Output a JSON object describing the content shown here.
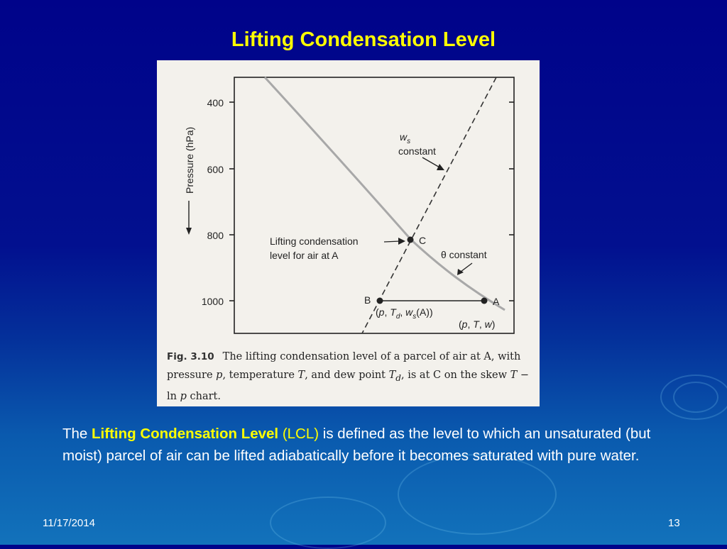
{
  "slide": {
    "title": "Lifting Condensation Level",
    "date": "11/17/2014",
    "page_number": "13"
  },
  "figure": {
    "y_axis_label": "Pressure (hPa)",
    "y_ticks": [
      "400",
      "600",
      "800",
      "1000"
    ],
    "ws_label_main": "w",
    "ws_label_sub": "s",
    "ws_constant": "constant",
    "theta_label": "θ constant",
    "lcl_label_line1": "Lifting condensation",
    "lcl_label_line2": "level for air at A",
    "point_c": "C",
    "point_b": "B",
    "point_a": "A",
    "b_coords": {
      "p1": "(",
      "p": "p",
      "sep1": ", ",
      "t": "T",
      "tsub": "d",
      "sep2": ", ",
      "w": "w",
      "wsub": "s",
      "tail": "(A))"
    },
    "a_coords": {
      "p1": "(",
      "p": "p",
      "sep1": ", ",
      "t": "T",
      "sep2": ", ",
      "w": "w",
      "tail": ")"
    }
  },
  "caption": {
    "fig_label": "Fig. 3.10",
    "part1": "The lifting condensation level of a parcel of air at A, with pressure ",
    "p": "p",
    "part2": ", temperature ",
    "t": "T",
    "part3": ", and dew point ",
    "td": "T",
    "td_sub": "d",
    "part4": ", is at C on the skew ",
    "t2": "T",
    "part5": " − ln ",
    "p2": "p",
    "part6": " chart."
  },
  "body": {
    "prefix": "The ",
    "term": "Lifting Condensation Level",
    "abbr": " (LCL)",
    "rest": " is defined as the level to which an unsaturated (but moist) parcel of air can be lifted adiabatically before it becomes saturated with pure water."
  }
}
